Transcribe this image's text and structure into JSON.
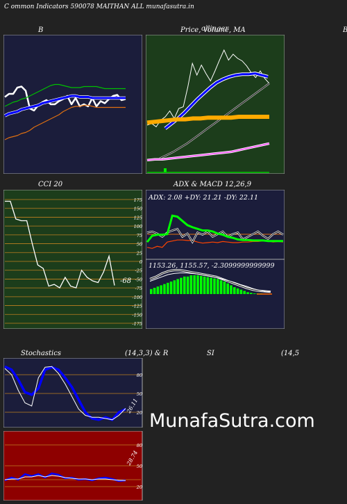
{
  "header": {
    "title": "C                   ommon  Indicators 590078  MAITHAN  ALL  munafasutra.in"
  },
  "watermark": "MunafaSutra.com",
  "colors": {
    "navy_panel": "#1b1d3b",
    "green_panel": "#1c3d1b",
    "red_panel": "#8e0000",
    "background": "#222222"
  },
  "panels": {
    "bollinger": {
      "title": "B"
    },
    "price_ma": {
      "title": "Price,  Volume,  MA",
      "title_overlap": "ollinger",
      "right_edge": "B"
    },
    "cci": {
      "title": "CCI 20",
      "value_label": "-68"
    },
    "adx_macd": {
      "title": "ADX  & MACD 12,26,9",
      "adx_text": "ADX: 2.08   +DY: 21.21 -DY: 22.11",
      "macd_text": "1153.26,    1155.57,   -2.3099999999999"
    },
    "stochastics": {
      "title_left": "Stochastics",
      "title_mid": "(14,3,3) & R",
      "value_label": "26.11"
    },
    "rsi": {
      "title_mid": "SI",
      "title_right": "(14,5",
      "value_label": "28.74"
    }
  },
  "chart_data": [
    {
      "type": "line",
      "title": "B",
      "series": [
        {
          "color": "#ffffff",
          "values": [
            47,
            50,
            50,
            56,
            57,
            53,
            36,
            34,
            39,
            42,
            44,
            40,
            40,
            43,
            45,
            48,
            40,
            46,
            38,
            40,
            38,
            46,
            38,
            43,
            41,
            45,
            48,
            49,
            44,
            45
          ]
        },
        {
          "color": "#0000ff",
          "values": [
            29,
            31,
            32,
            33,
            35,
            36,
            37,
            38,
            39,
            41,
            42,
            43,
            44,
            45,
            46,
            47,
            48,
            48,
            47,
            47,
            47,
            46,
            46,
            46,
            46,
            46,
            46,
            46,
            46,
            46
          ]
        },
        {
          "color": "#00c000",
          "values": [
            38,
            40,
            42,
            43,
            45,
            46,
            48,
            50,
            52,
            54,
            56,
            58,
            59,
            59,
            58,
            57,
            56,
            56,
            56,
            57,
            57,
            57,
            57,
            56,
            55,
            55,
            55,
            55,
            55,
            55
          ]
        },
        {
          "color": "#e07010",
          "values": [
            6,
            8,
            9,
            10,
            12,
            13,
            15,
            18,
            20,
            22,
            24,
            26,
            28,
            30,
            33,
            35,
            37,
            38,
            38,
            39,
            39,
            38,
            37,
            37,
            37,
            37,
            37,
            37,
            37,
            37
          ]
        }
      ]
    },
    {
      "type": "line",
      "title": "Price,  Volume,  MA",
      "series": [
        {
          "color": "#ffffff",
          "values": [
            50,
            52,
            48,
            56,
            60,
            67,
            58,
            70,
            72,
            96,
            124,
            110,
            122,
            112,
            103,
            115,
            128,
            140,
            128,
            135,
            130,
            127,
            121,
            113,
            107,
            115,
            106,
            100
          ]
        },
        {
          "color": "#0000ff",
          "values": [
            46,
            52,
            58,
            65,
            73,
            81,
            88,
            95,
            101,
            105,
            108,
            110,
            111,
            111,
            112,
            110,
            108
          ]
        },
        {
          "color": "#ffaa00",
          "values": [
            53,
            54,
            55,
            56,
            57,
            57,
            58,
            58,
            59,
            59,
            59,
            59,
            60,
            60,
            60,
            60,
            60
          ]
        },
        {
          "color": "#ff66ff",
          "values": [
            8,
            9,
            9,
            10,
            11,
            12,
            13,
            14,
            15,
            16,
            17,
            18,
            20,
            22,
            24,
            26,
            28
          ]
        }
      ]
    },
    {
      "type": "line",
      "title": "CCI 20",
      "ylim": [
        -175,
        175
      ],
      "yticks": [
        175,
        150,
        125,
        100,
        75,
        50,
        25,
        0,
        -25,
        -50,
        -75,
        -100,
        -125,
        -150,
        -175
      ],
      "series": [
        {
          "color": "#ffffff",
          "values": [
            170,
            170,
            120,
            115,
            115,
            50,
            -10,
            -20,
            -70,
            -65,
            -75,
            -45,
            -70,
            -75,
            -25,
            -45,
            -55,
            -60,
            -30,
            15,
            -68
          ]
        }
      ]
    },
    {
      "type": "line",
      "title": "ADX  & MACD 12,26,9",
      "series": [
        {
          "name": "ADX",
          "color": "#ffffff",
          "values": [
            48,
            50,
            46,
            40,
            48,
            52,
            55,
            40,
            46,
            30,
            48,
            44,
            50,
            40,
            45,
            50,
            40,
            45,
            48,
            35,
            40,
            45,
            50,
            42,
            36,
            45,
            50,
            44
          ]
        },
        {
          "name": "+DY",
          "color": "#00ff00",
          "values": [
            30,
            42,
            44,
            44,
            45,
            80,
            78,
            70,
            62,
            58,
            55,
            52,
            52,
            50,
            46,
            44,
            40,
            38,
            35,
            34,
            34,
            33,
            33,
            33,
            32,
            32,
            32,
            32
          ]
        },
        {
          "name": "-DY",
          "color": "#ff4400",
          "values": [
            20,
            18,
            22,
            20,
            30,
            32,
            34,
            34,
            33,
            33,
            30,
            28,
            29,
            30,
            29,
            31,
            30,
            29,
            29,
            30,
            30,
            31,
            31,
            32,
            32,
            30,
            31,
            30
          ]
        }
      ]
    },
    {
      "type": "line",
      "title": "Stochastics (14,3,3)",
      "yticks": [
        80,
        50,
        20
      ],
      "series": [
        {
          "color": "#0000ff",
          "values": [
            93,
            88,
            72,
            52,
            48,
            58,
            88,
            92,
            88,
            75,
            60,
            40,
            20,
            10,
            8,
            12,
            8,
            20,
            25
          ]
        },
        {
          "color": "#ffffff",
          "values": [
            90,
            80,
            55,
            35,
            30,
            75,
            92,
            93,
            82,
            65,
            45,
            25,
            15,
            12,
            12,
            10,
            8,
            15,
            26.11
          ]
        }
      ]
    },
    {
      "type": "line",
      "title": "SI (14,5",
      "yticks": [
        80,
        50,
        30,
        20
      ],
      "series": [
        {
          "color": "#0000ff",
          "values": [
            29,
            33,
            30,
            38,
            35,
            38,
            33,
            39,
            37,
            32,
            33,
            30,
            31,
            29,
            32,
            33,
            31,
            28,
            29
          ]
        },
        {
          "color": "#ffffff",
          "values": [
            30,
            31,
            31,
            34,
            34,
            36,
            34,
            36,
            35,
            33,
            32,
            31,
            31,
            30,
            31,
            31,
            30,
            29,
            28.74
          ]
        }
      ]
    }
  ]
}
